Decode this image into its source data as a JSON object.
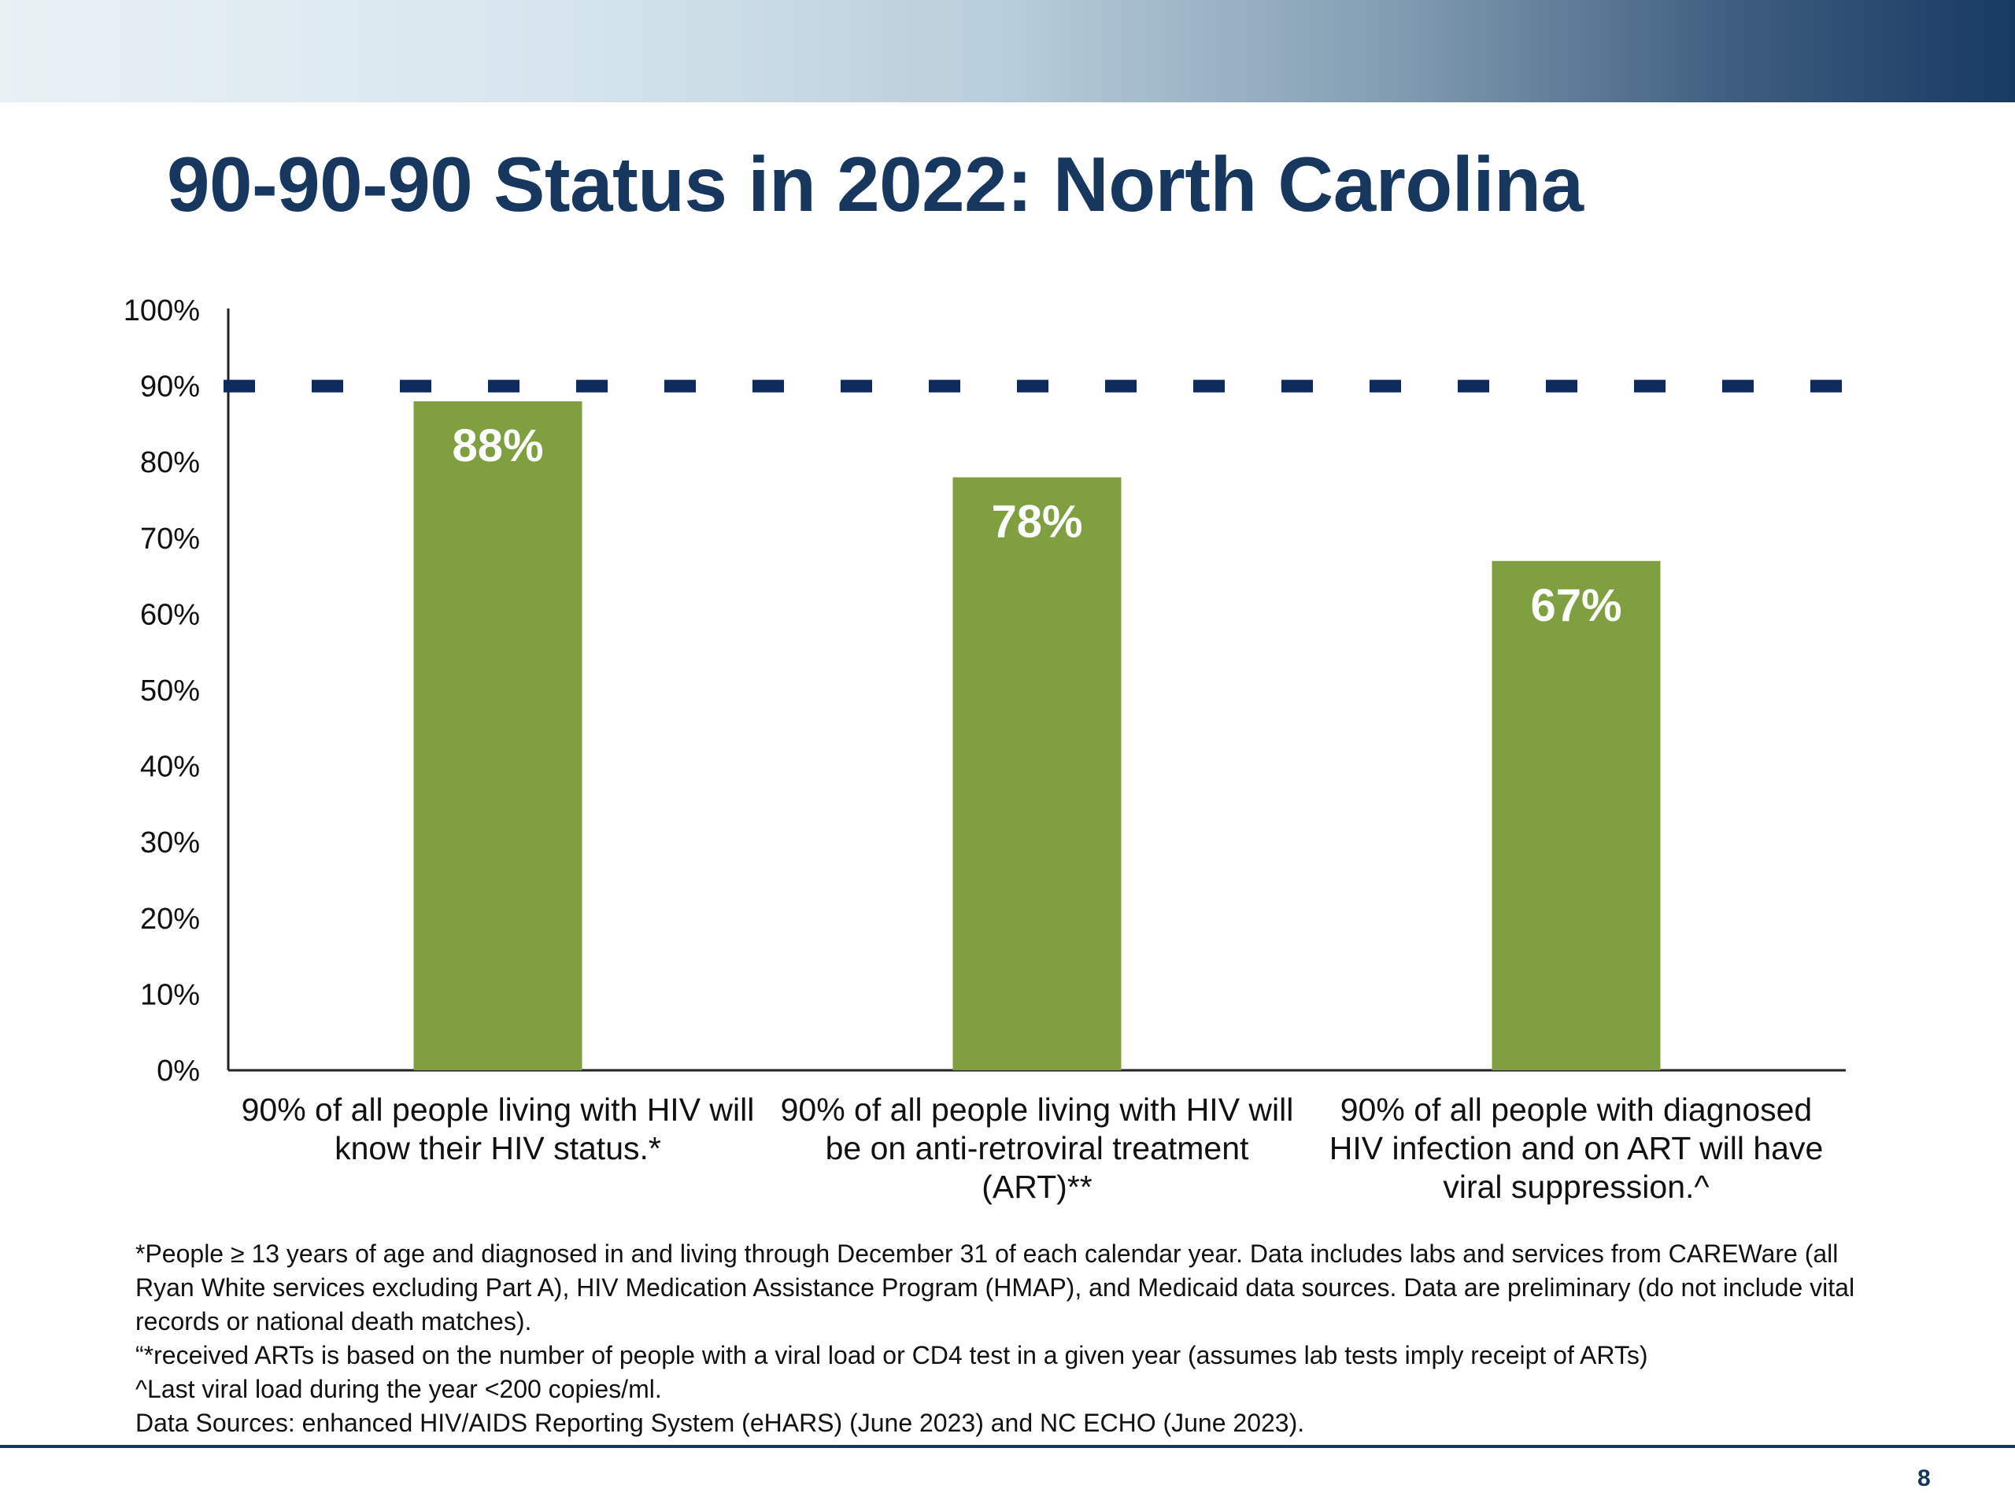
{
  "slide": {
    "title": "90-90-90 Status in 2022: North Carolina",
    "page_number": "8",
    "footnotes": [
      "*People ≥ 13 years of age and diagnosed in and living through December 31 of each calendar year. Data includes labs and services from CAREWare (all Ryan White services excluding Part A), HIV Medication Assistance Program (HMAP), and Medicaid data sources. Data are preliminary (do not include vital records or national death matches).",
      "“*received ARTs is based on the number of people with a viral load or CD4 test in a given year (assumes lab tests imply receipt of ARTs)",
      "^Last viral load during the year <200 copies/ml.",
      "Data Sources: enhanced HIV/AIDS Reporting System (eHARS) (June 2023) and NC ECHO (June 2023)."
    ]
  },
  "colors": {
    "bar": "#7f9f41",
    "target_line": "#0f2a5c",
    "title": "#17375e",
    "axis": "#222222",
    "data_label": "#ffffff"
  },
  "chart_data": {
    "type": "bar",
    "categories": [
      [
        "90% of all people living with HIV will",
        "know their HIV status.*"
      ],
      [
        "90% of all people living with HIV will",
        "be on anti-retroviral treatment",
        "(ART)**"
      ],
      [
        "90% of all people with diagnosed",
        "HIV infection and on ART will have",
        "viral suppression.^"
      ]
    ],
    "values": [
      88,
      78,
      67
    ],
    "data_labels": [
      "88%",
      "78%",
      "67%"
    ],
    "ylim": [
      0,
      100
    ],
    "yticks": [
      0,
      10,
      20,
      30,
      40,
      50,
      60,
      70,
      80,
      90,
      100
    ],
    "ytick_labels": [
      "0%",
      "10%",
      "20%",
      "30%",
      "40%",
      "50%",
      "60%",
      "70%",
      "80%",
      "90%",
      "100%"
    ],
    "target": 90,
    "target_style": "dashed",
    "grid": false,
    "legend": false
  }
}
